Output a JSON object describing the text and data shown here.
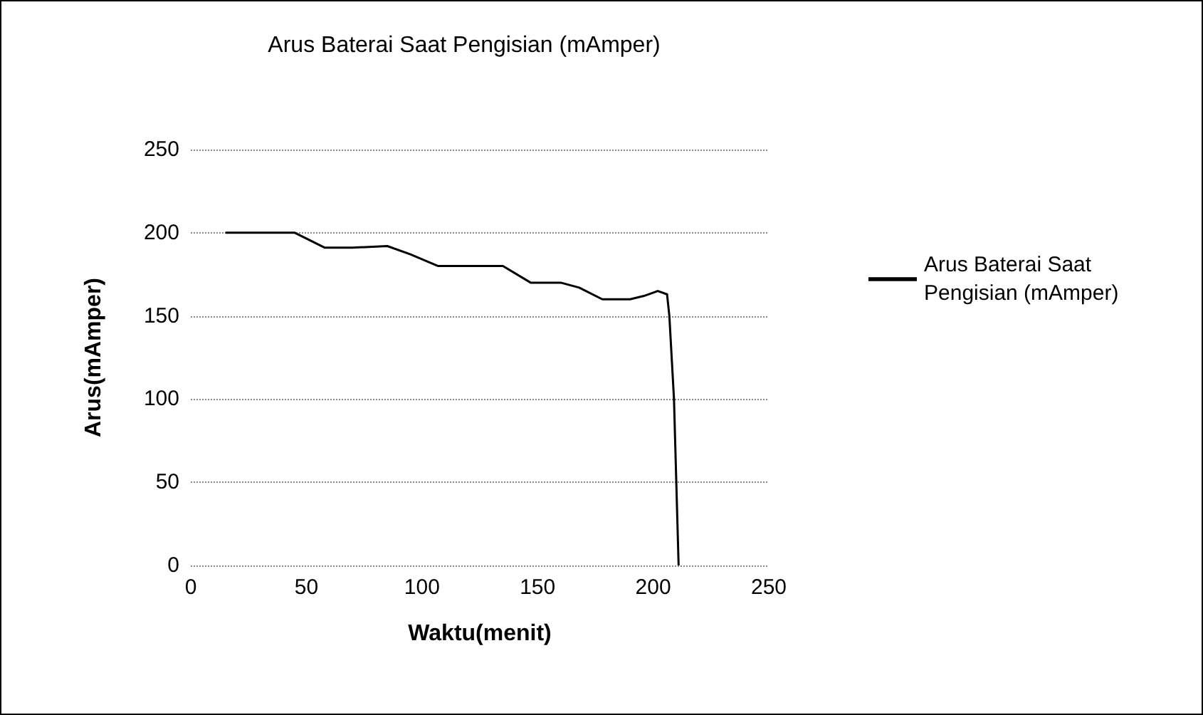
{
  "chart_data": {
    "type": "line",
    "title": "Arus Baterai Saat Pengisian (mAmper)",
    "xlabel": "Waktu(menit)",
    "ylabel": "Arus(mAmper)",
    "series": [
      {
        "name": "Arus Baterai Saat Pengisian (mAmper)",
        "color": "#000000",
        "x": [
          15,
          30,
          45,
          58,
          70,
          85,
          95,
          107,
          120,
          135,
          147,
          160,
          168,
          178,
          190,
          196,
          202,
          206,
          207,
          209,
          210,
          211
        ],
        "values": [
          200,
          200,
          200,
          191,
          191,
          192,
          187,
          180,
          180,
          180,
          170,
          170,
          167,
          160,
          160,
          162,
          165,
          163,
          150,
          100,
          50,
          0
        ]
      }
    ],
    "xlim": [
      0,
      250
    ],
    "xticks": [
      0,
      50,
      100,
      150,
      200,
      250
    ],
    "ylim": [
      0,
      250
    ],
    "yticks": [
      0,
      50,
      100,
      150,
      200,
      250
    ],
    "grid": "y",
    "legend": "right",
    "marker": "none",
    "line_style": "solid"
  }
}
